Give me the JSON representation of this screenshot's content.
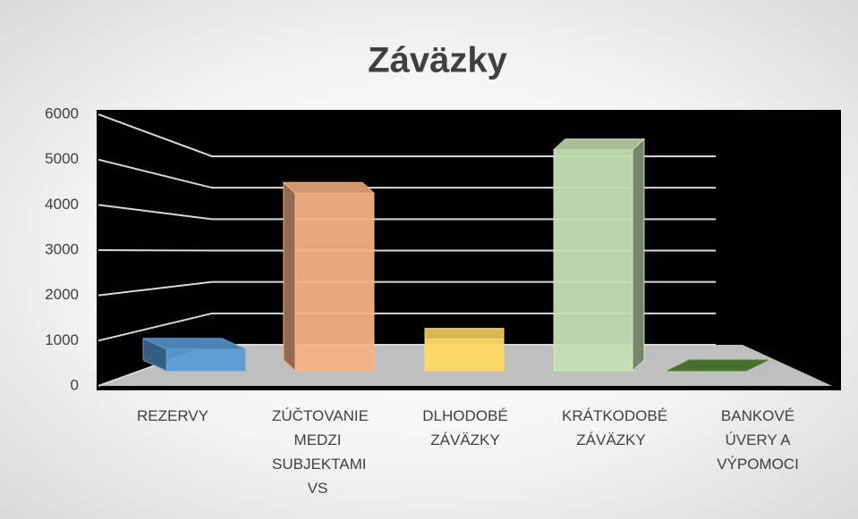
{
  "chart_data": {
    "type": "bar3d",
    "title": "Záväzky",
    "categories": [
      "REZERVY",
      "ZÚČTOVANIE MEDZI SUBJEKTAMI VS",
      "DLHODOBÉ ZÁVÄZKY",
      "KRÁTKODOBÉ ZÁVÄZKY",
      "BANKOVÉ ÚVERY A VÝPOMOCI"
    ],
    "values": [
      550,
      4500,
      800,
      5600,
      0
    ],
    "colors": [
      "#5b9bd5",
      "#f4b183",
      "#ffd966",
      "#c5e0b4",
      "#548235"
    ],
    "ylim": [
      0,
      6000
    ],
    "yticks": [
      0,
      1000,
      2000,
      3000,
      4000,
      5000,
      6000
    ],
    "grid": true
  }
}
